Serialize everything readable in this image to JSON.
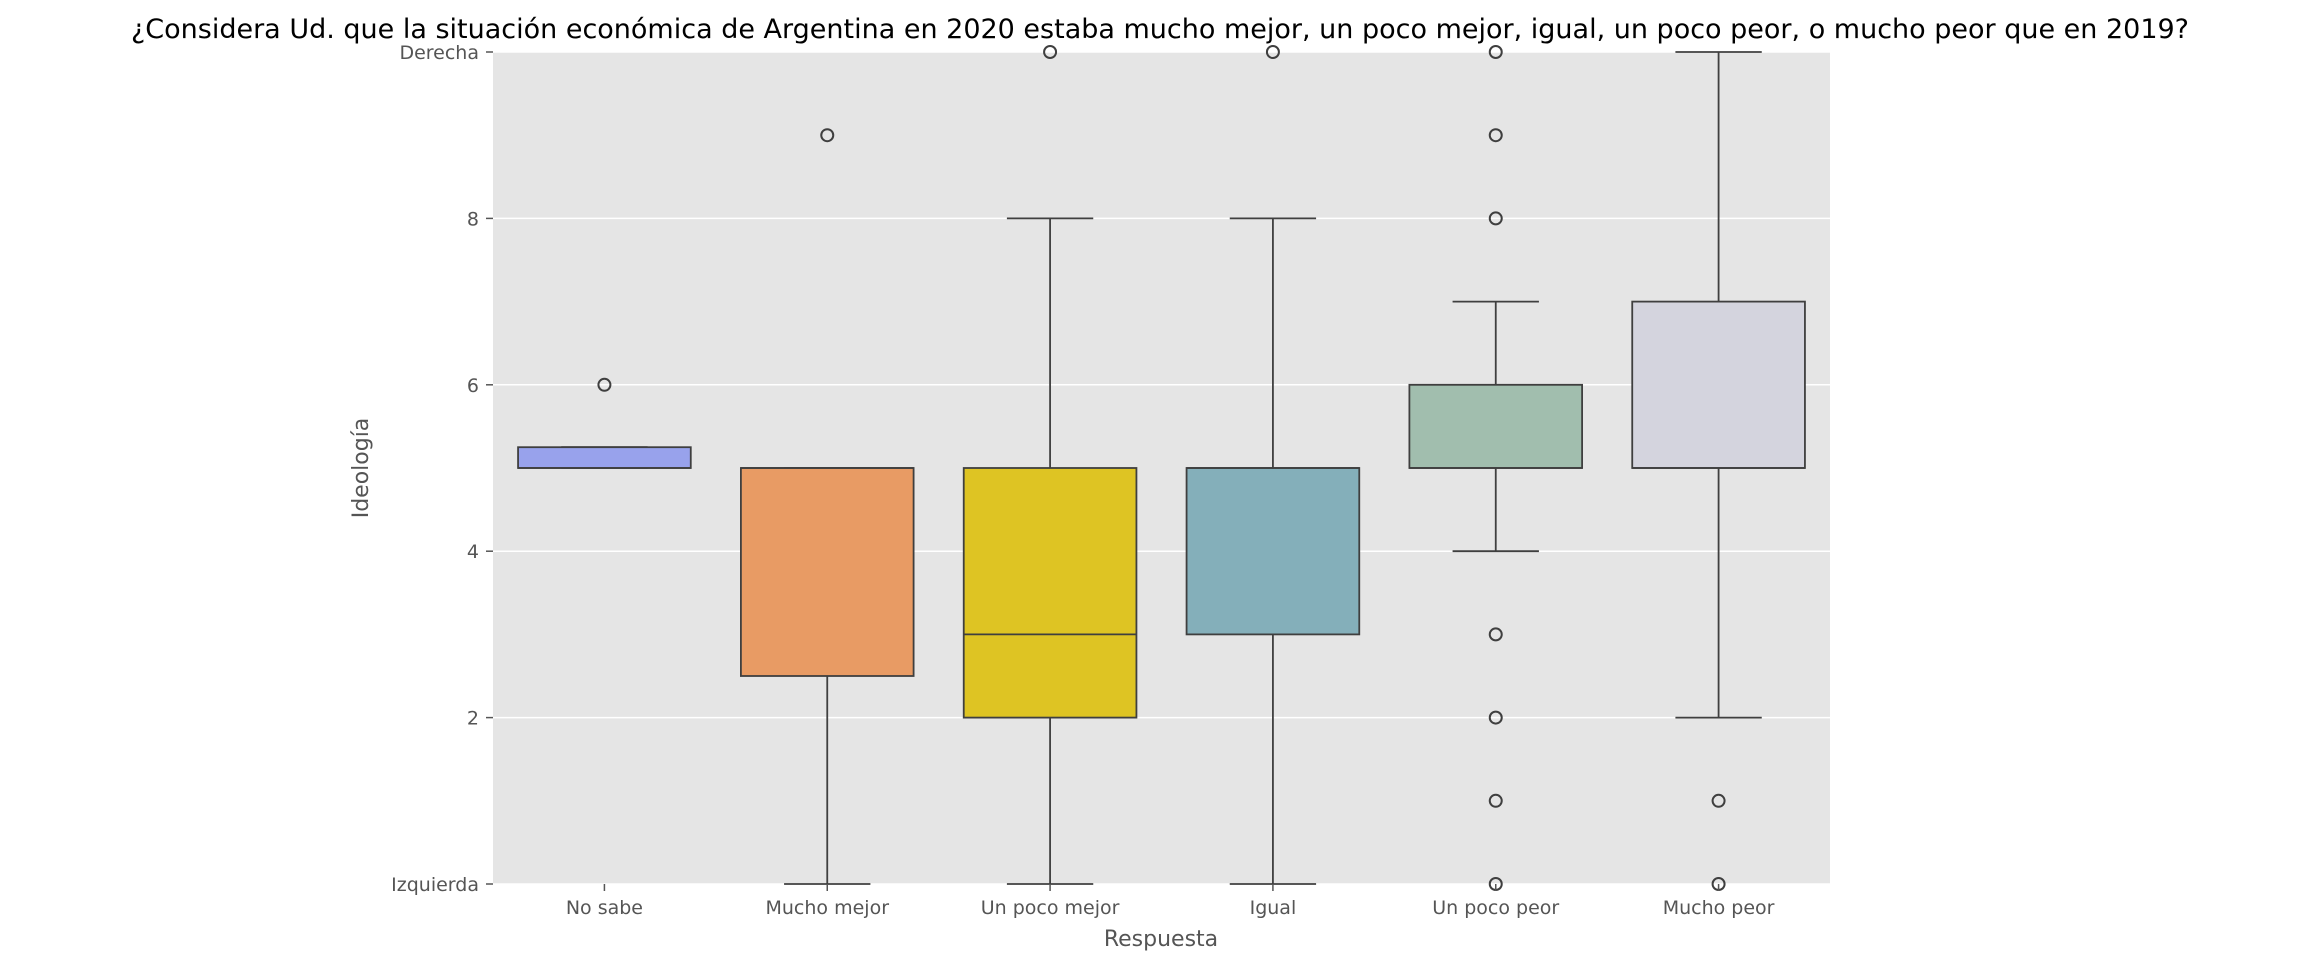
{
  "chart_data": {
    "type": "box",
    "title": "¿Considera Ud. que la situación económica de Argentina en 2020 estaba mucho mejor, un poco mejor, igual, un poco peor, o mucho peor que en 2019?",
    "xlabel": "Respuesta",
    "ylabel": "Ideología",
    "ylim": [
      0,
      10
    ],
    "grid": true,
    "yticks": [
      {
        "value": 0,
        "label": "Izquierda"
      },
      {
        "value": 2,
        "label": "2"
      },
      {
        "value": 4,
        "label": "4"
      },
      {
        "value": 6,
        "label": "6"
      },
      {
        "value": 8,
        "label": "8"
      },
      {
        "value": 10,
        "label": "Derecha"
      }
    ],
    "categories": [
      "No sabe",
      "Mucho mejor",
      "Un poco mejor",
      "Igual",
      "Un poco peor",
      "Mucho peor"
    ],
    "boxes": [
      {
        "category": "No sabe",
        "q1": 5,
        "median": 5,
        "q3": 5.25,
        "whisker_low": 5,
        "whisker_high": 5.25,
        "outliers": [
          6
        ],
        "color": "#98a2ec"
      },
      {
        "category": "Mucho mejor",
        "q1": 2.5,
        "median": 5,
        "q3": 5,
        "whisker_low": 0,
        "whisker_high": 5,
        "outliers": [
          9
        ],
        "color": "#e89b64"
      },
      {
        "category": "Un poco mejor",
        "q1": 2,
        "median": 3,
        "q3": 5,
        "whisker_low": 0,
        "whisker_high": 8,
        "outliers": [
          10
        ],
        "color": "#dec423"
      },
      {
        "category": "Igual",
        "q1": 3,
        "median": 5,
        "q3": 5,
        "whisker_low": 0,
        "whisker_high": 8,
        "outliers": [
          10
        ],
        "color": "#84afba"
      },
      {
        "category": "Un poco peor",
        "q1": 5,
        "median": 5,
        "q3": 6,
        "whisker_low": 4,
        "whisker_high": 7,
        "outliers": [
          0,
          1,
          2,
          3,
          8,
          9,
          10
        ],
        "color": "#a1beae"
      },
      {
        "category": "Mucho peor",
        "q1": 5,
        "median": 5,
        "q3": 7,
        "whisker_low": 2,
        "whisker_high": 10,
        "outliers": [
          0,
          1
        ],
        "color": "#d4d4de"
      }
    ]
  }
}
